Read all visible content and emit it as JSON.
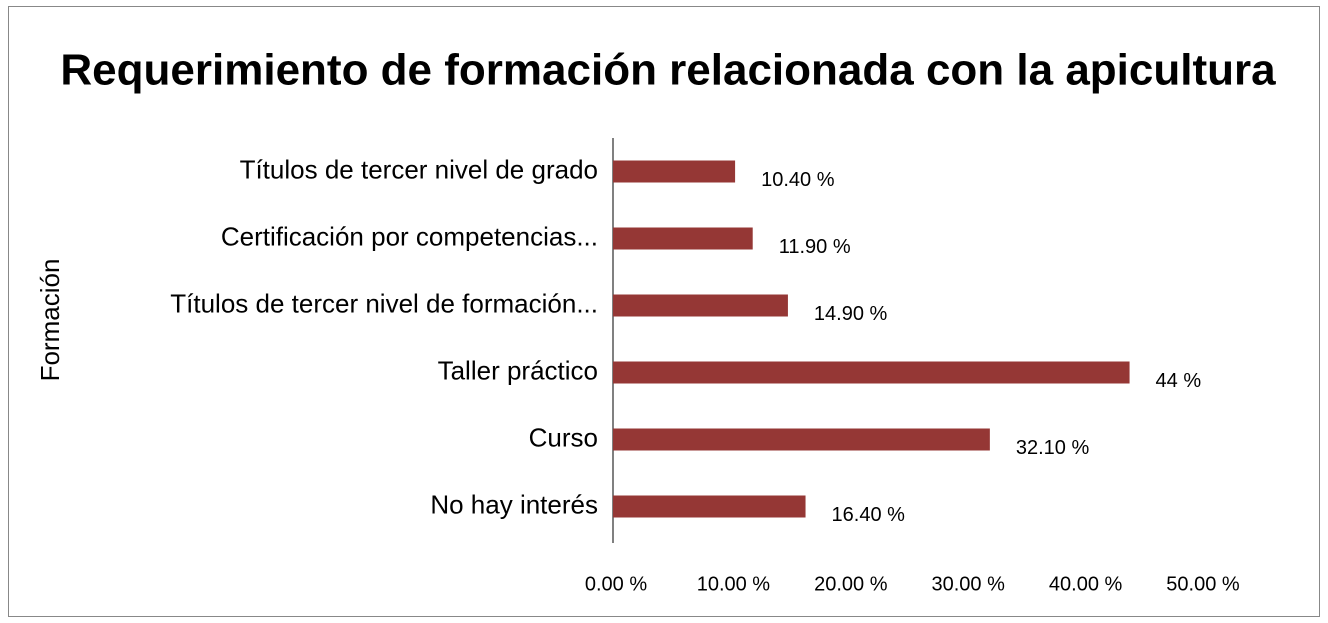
{
  "chart_data": {
    "type": "bar",
    "orientation": "horizontal",
    "title": "Requerimiento de formación relacionada con la apicultura",
    "y_label": "Formación",
    "categories": [
      "Títulos de tercer nivel de grado",
      "Certificación por competencias...",
      "Títulos de tercer nivel de formación...",
      "Taller práctico",
      "Curso",
      "No hay interés"
    ],
    "values": [
      10.4,
      11.9,
      14.9,
      44,
      32.1,
      16.4
    ],
    "value_labels": [
      "10.40 %",
      "11.90 %",
      "14.90 %",
      "44 %",
      "32.10 %",
      "16.40 %"
    ],
    "color": "#953735",
    "xlim": [
      0,
      50
    ],
    "xticks": [
      {
        "value": 0,
        "label": "0.00 %"
      },
      {
        "value": 10,
        "label": "10.00 %"
      },
      {
        "value": 20,
        "label": "20.00 %"
      },
      {
        "value": 30,
        "label": "30.00 %"
      },
      {
        "value": 40,
        "label": "40.00 %"
      },
      {
        "value": 50,
        "label": "50.00 %"
      }
    ],
    "grid": false
  }
}
